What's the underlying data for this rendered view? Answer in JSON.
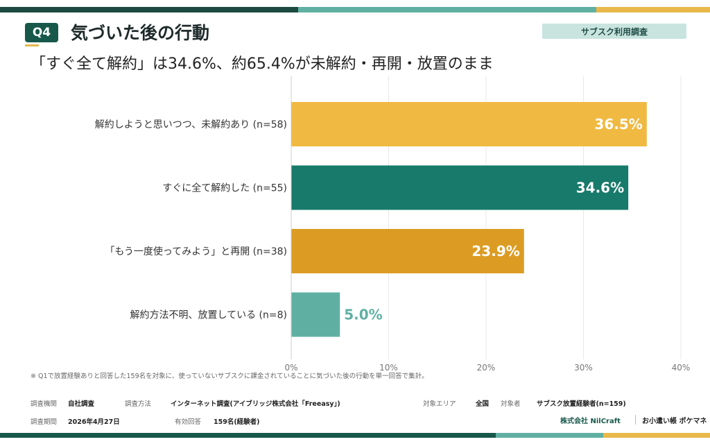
{
  "header": {
    "badge": "Q4",
    "title": "気づいた後の行動",
    "tag": "サブスク利用調査",
    "subtitle": "「すぐ全て解約」は34.6%、約65.4%が未解約・再開・放置のまま"
  },
  "chart_data": {
    "type": "bar",
    "orientation": "horizontal",
    "categories": [
      "解約しようと思いつつ、未解約あり (n=58)",
      "すぐに全て解約した (n=55)",
      "「もう一度使ってみよう」と再開 (n=38)",
      "解約方法不明、放置している (n=8)"
    ],
    "values": [
      36.5,
      34.6,
      23.9,
      5.0
    ],
    "value_labels": [
      "36.5%",
      "34.6%",
      "23.9%",
      "5.0%"
    ],
    "colors": [
      "#f0b942",
      "#177a6a",
      "#dc9c24",
      "#5fb0a3"
    ],
    "label_colors": [
      "#ffffff",
      "#ffffff",
      "#ffffff",
      "#5fb0a3"
    ],
    "xlim": [
      0,
      40
    ],
    "ticks": [
      0,
      10,
      20,
      30,
      40
    ],
    "tick_labels": [
      "0%",
      "10%",
      "20%",
      "30%",
      "40%"
    ],
    "grid": true
  },
  "footer": {
    "note": "※ Q1で放置経験ありと回答した159名を対象に、使っていないサブスクに課金されていることに気づいた後の行動を単一回答で集計。",
    "org_label": "調査機関",
    "org_value": "自社調査",
    "method_label": "調査方法",
    "method_value": "インターネット調査(アイブリッジ株式会社「Freeasy」)",
    "area_label": "対象エリア",
    "area_value": "全国",
    "target_label": "対象者",
    "target_value": "サブスク放置経験者(n=159)",
    "period_label": "調査期間",
    "period_value": "2026年4月27日",
    "valid_label": "有効回答",
    "valid_value": "159名(経験者)",
    "company": "株式会社 NilCraft",
    "brand": "お小遣い帳 ポケマネ"
  }
}
